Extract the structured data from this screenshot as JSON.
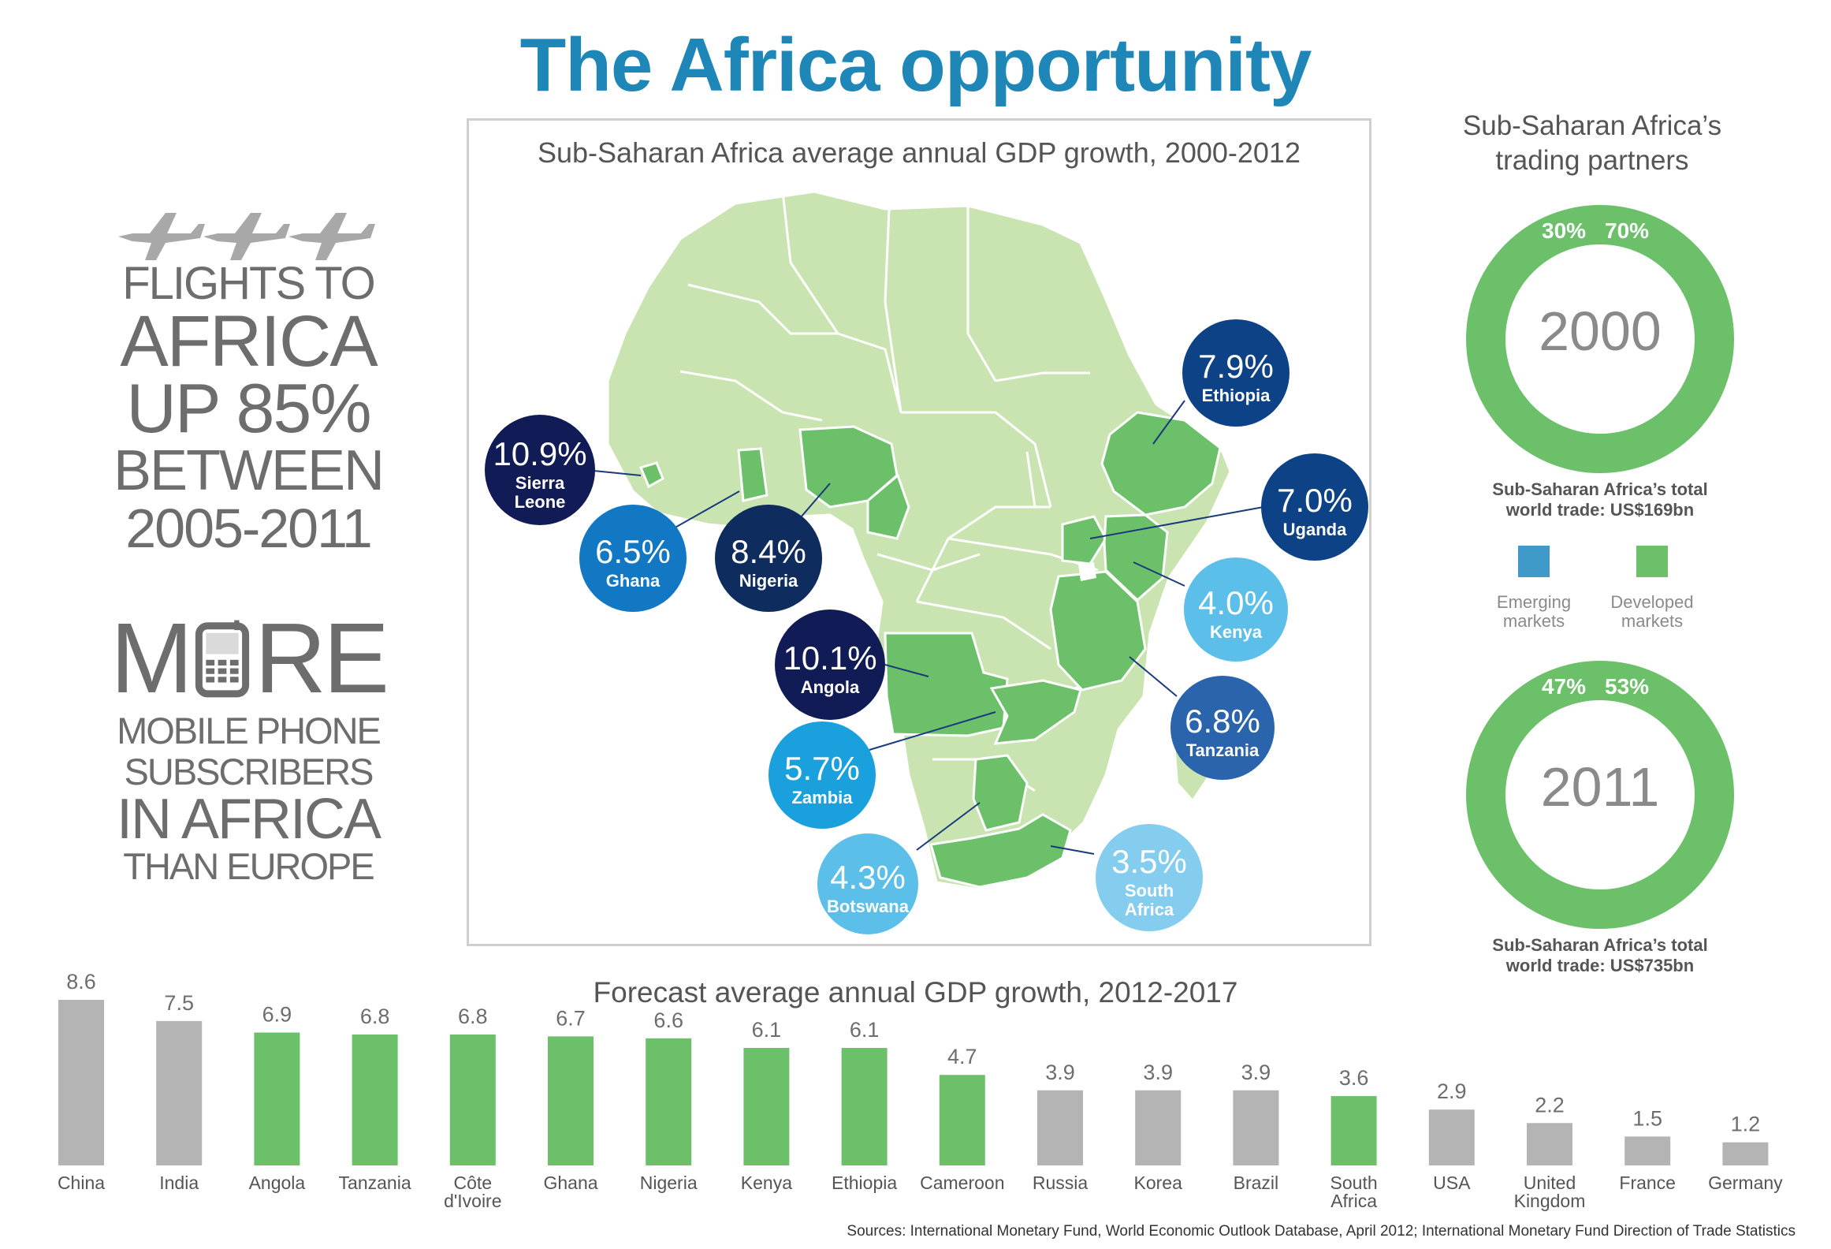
{
  "title": "The Africa opportunity",
  "colors": {
    "accent": "#1f86b8",
    "green": "#6cc06a",
    "light_green": "#c9e4b1",
    "blue": "#3f9ac9",
    "gray_bar": "#b4b4b4",
    "text_gray": "#6d6d6d"
  },
  "left_panel": {
    "icon": "airplane-icons",
    "flights_lines": [
      "FLIGHTS TO",
      "AFRICA",
      "UP 85%",
      "BETWEEN",
      "2005-2011"
    ],
    "more_letters": [
      "M",
      "RE"
    ],
    "more_icon": "mobile-phone-icon",
    "mobile_lines": [
      "MOBILE PHONE",
      "SUBSCRIBERS",
      "IN AFRICA",
      "THAN EUROPE"
    ]
  },
  "map": {
    "title": "Sub-Saharan Africa average annual GDP growth, 2000-2012",
    "callouts": [
      {
        "pct": "10.9%",
        "name": [
          "Sierra",
          "Leone"
        ],
        "color": "#111b55"
      },
      {
        "pct": "6.5%",
        "name": [
          "Ghana"
        ],
        "color": "#1278c4"
      },
      {
        "pct": "8.4%",
        "name": [
          "Nigeria"
        ],
        "color": "#0f2c5e"
      },
      {
        "pct": "7.9%",
        "name": [
          "Ethiopia"
        ],
        "color": "#0d4386"
      },
      {
        "pct": "7.0%",
        "name": [
          "Uganda"
        ],
        "color": "#0d4386"
      },
      {
        "pct": "4.0%",
        "name": [
          "Kenya"
        ],
        "color": "#5bbfea"
      },
      {
        "pct": "10.1%",
        "name": [
          "Angola"
        ],
        "color": "#111b55"
      },
      {
        "pct": "6.8%",
        "name": [
          "Tanzania"
        ],
        "color": "#2964ad"
      },
      {
        "pct": "5.7%",
        "name": [
          "Zambia"
        ],
        "color": "#1aa1dd"
      },
      {
        "pct": "4.3%",
        "name": [
          "Botswana"
        ],
        "color": "#5bbfea"
      },
      {
        "pct": "3.5%",
        "name": [
          "South",
          "Africa"
        ],
        "color": "#85cdee"
      }
    ]
  },
  "trade": {
    "title": "Sub-Saharan Africa’s trading partners",
    "legend": [
      {
        "label": "Emerging markets",
        "color": "#3f9ac9"
      },
      {
        "label": "Developed markets",
        "color": "#6cc06a"
      }
    ],
    "donuts": [
      {
        "year": "2000",
        "emerging_pct": 30,
        "developed_pct": 70,
        "emerging_label": "30%",
        "developed_label": "70%",
        "caption": [
          "Sub-Saharan Africa’s total",
          "world trade: US$169bn"
        ]
      },
      {
        "year": "2011",
        "emerging_pct": 47,
        "developed_pct": 53,
        "emerging_label": "47%",
        "developed_label": "53%",
        "caption": [
          "Sub-Saharan Africa’s total",
          "world trade: US$735bn"
        ]
      }
    ]
  },
  "chart_data": {
    "type": "bar",
    "title": "Forecast average annual GDP growth, 2012-2017",
    "categories": [
      "China",
      "India",
      "Angola",
      "Tanzania",
      "Côte d'Ivoire",
      "Ghana",
      "Nigeria",
      "Kenya",
      "Ethiopia",
      "Cameroon",
      "Russia",
      "Korea",
      "Brazil",
      "South Africa",
      "USA",
      "United Kingdom",
      "France",
      "Germany"
    ],
    "category_lines": [
      [
        "China"
      ],
      [
        "India"
      ],
      [
        "Angola"
      ],
      [
        "Tanzania"
      ],
      [
        "Côte",
        "d'Ivoire"
      ],
      [
        "Ghana"
      ],
      [
        "Nigeria"
      ],
      [
        "Kenya"
      ],
      [
        "Ethiopia"
      ],
      [
        "Cameroon"
      ],
      [
        "Russia"
      ],
      [
        "Korea"
      ],
      [
        "Brazil"
      ],
      [
        "South",
        "Africa"
      ],
      [
        "USA"
      ],
      [
        "United",
        "Kingdom"
      ],
      [
        "France"
      ],
      [
        "Germany"
      ]
    ],
    "values": [
      8.6,
      7.5,
      6.9,
      6.8,
      6.8,
      6.7,
      6.6,
      6.1,
      6.1,
      4.7,
      3.9,
      3.9,
      3.9,
      3.6,
      2.9,
      2.2,
      1.5,
      1.2
    ],
    "value_labels": [
      "8.6",
      "7.5",
      "6.9",
      "6.8",
      "6.8",
      "6.7",
      "6.6",
      "6.1",
      "6.1",
      "4.7",
      "3.9",
      "3.9",
      "3.9",
      "3.6",
      "2.9",
      "2.2",
      "1.5",
      "1.2"
    ],
    "african": [
      false,
      false,
      true,
      true,
      true,
      true,
      true,
      true,
      true,
      true,
      false,
      false,
      false,
      true,
      false,
      false,
      false,
      false
    ],
    "ylim": [
      0,
      8.6
    ],
    "grid": false,
    "xlabel": "",
    "ylabel": ""
  },
  "sources": "Sources: International Monetary Fund, World Economic Outlook Database, April 2012; International Monetary Fund Direction of Trade Statistics"
}
